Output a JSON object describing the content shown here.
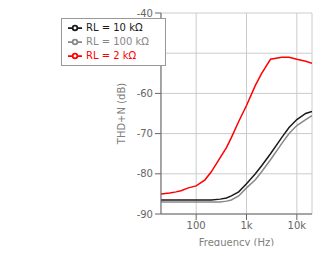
{
  "chart_data": {
    "type": "line",
    "xlabel": "Frequency (Hz)",
    "ylabel": "THD+N (dB)",
    "log": "x",
    "grid": true,
    "legend": "upper left",
    "xlim": [
      20,
      20000
    ],
    "ylim": [
      -90,
      -40
    ],
    "xticks": [
      {
        "value": 100,
        "label": "100"
      },
      {
        "value": 1000,
        "label": "1k"
      },
      {
        "value": 10000,
        "label": "10k"
      }
    ],
    "yticks": [
      -90,
      -80,
      -70,
      -60,
      -50,
      -40
    ],
    "x": [
      20,
      30,
      40,
      50,
      70,
      100,
      150,
      200,
      300,
      400,
      500,
      700,
      1000,
      1500,
      2000,
      3000,
      5000,
      7000,
      10000,
      15000,
      20000
    ],
    "series": [
      {
        "name": "RL = 2 kΩ",
        "color": "#ff0000",
        "values": [
          -85,
          -84.8,
          -84.5,
          -84.2,
          -83.5,
          -83.0,
          -81.5,
          -79.5,
          -76.0,
          -73.5,
          -71.0,
          -67.0,
          -63.0,
          -58.0,
          -55.0,
          -51.5,
          -51.0,
          -51.0,
          -51.5,
          -52.0,
          -52.5
        ]
      },
      {
        "name": "RL = 10 kΩ",
        "color": "#1a1a1a",
        "values": [
          -86.5,
          -86.5,
          -86.5,
          -86.5,
          -86.5,
          -86.5,
          -86.5,
          -86.5,
          -86.3,
          -86.0,
          -85.5,
          -84.5,
          -82.5,
          -80.0,
          -78.0,
          -75.0,
          -71.0,
          -68.5,
          -66.5,
          -65.0,
          -64.5
        ]
      },
      {
        "name": "RL = 100 kΩ",
        "color": "#888888",
        "values": [
          -87.0,
          -87.0,
          -87.0,
          -87.0,
          -87.0,
          -87.0,
          -87.0,
          -87.0,
          -87.0,
          -86.8,
          -86.5,
          -85.5,
          -83.5,
          -81.5,
          -79.5,
          -76.5,
          -72.5,
          -70.0,
          -68.0,
          -66.5,
          -65.5
        ]
      }
    ]
  }
}
